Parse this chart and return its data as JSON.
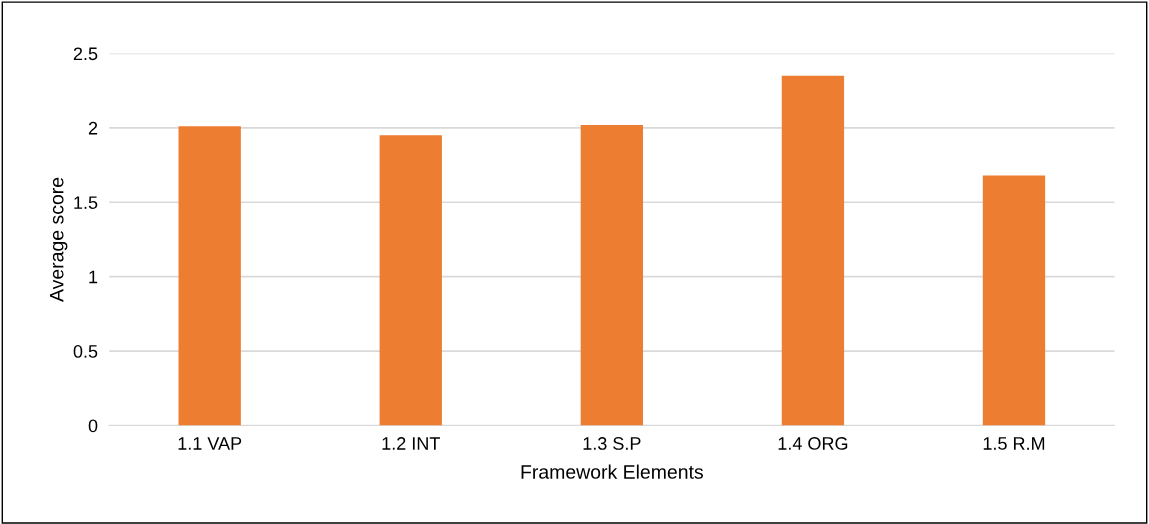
{
  "chart_data": {
    "type": "bar",
    "xlabel": "Framework Elements",
    "ylabel": "Average score",
    "categories": [
      "1.1 VAP",
      "1.2 INT",
      "1.3 S.P",
      "1.4 ORG",
      "1.5 R.M"
    ],
    "values": [
      2.01,
      1.95,
      2.02,
      2.35,
      1.68
    ],
    "color": "#ed7d31",
    "ylim": [
      0,
      2.5
    ],
    "yticks": [
      0,
      0.5,
      1,
      1.5,
      2,
      2.5
    ],
    "grid": "y",
    "legend": false
  }
}
